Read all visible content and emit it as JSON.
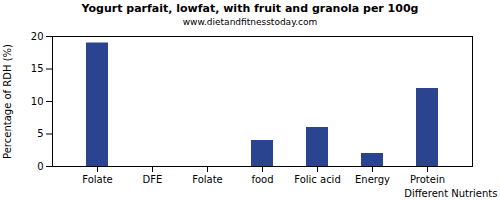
{
  "chart_data": {
    "type": "bar",
    "title": "Yogurt parfait, lowfat, with fruit and granola per 100g",
    "subtitle": "www.dietandfitnesstoday.com",
    "x_label": "Different Nutrients",
    "y_label": "Percentage of RDH (%)",
    "categories": [
      "Folate",
      "DFE",
      "Folate",
      "food",
      "Folic acid",
      "Energy",
      "Protein"
    ],
    "values": [
      19,
      0,
      0,
      4,
      6,
      2,
      12
    ],
    "color": "#2b4490",
    "ylim": [
      0,
      20
    ],
    "yticks": [
      0,
      5,
      10,
      15,
      20
    ],
    "grid": false
  }
}
